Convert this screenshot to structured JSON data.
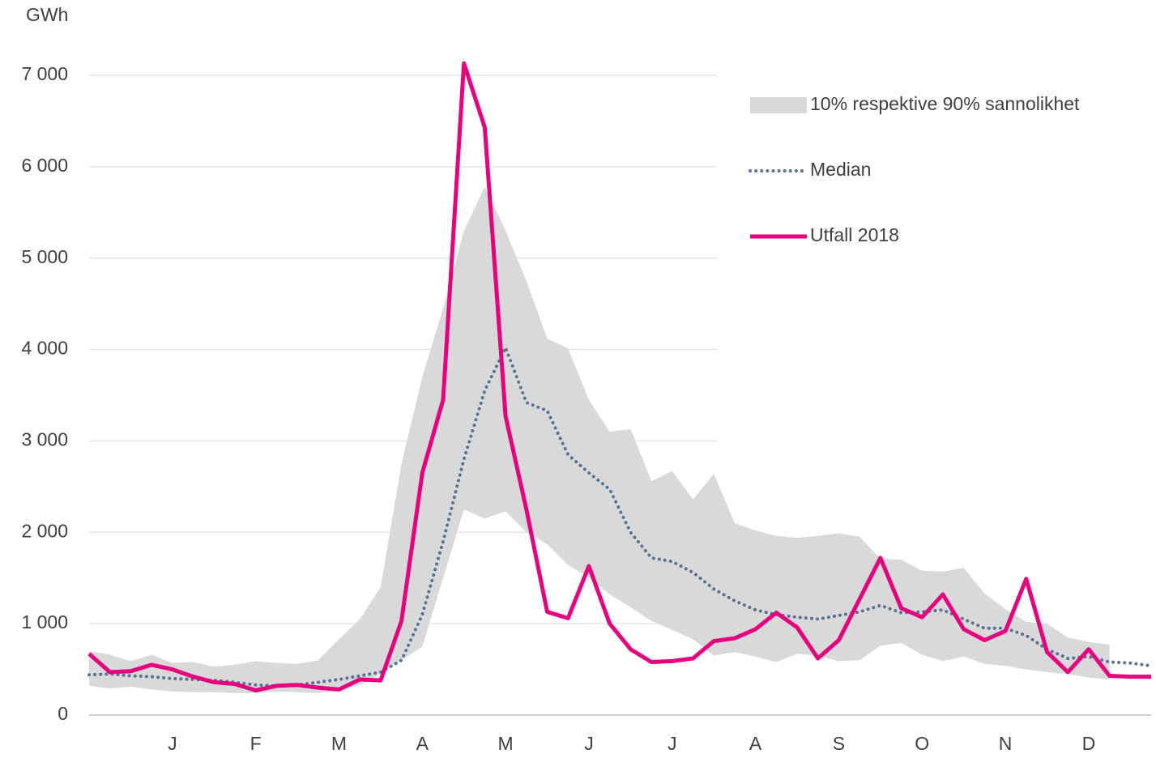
{
  "chart_data": {
    "type": "line",
    "y_label": "GWh",
    "x": [
      1,
      2,
      3,
      4,
      5,
      6,
      7,
      8,
      9,
      10,
      11,
      12,
      13,
      14,
      15,
      16,
      17,
      18,
      19,
      20,
      21,
      22,
      23,
      24,
      25,
      26,
      27,
      28,
      29,
      30,
      31,
      32,
      33,
      34,
      35,
      36,
      37,
      38,
      39,
      40,
      41,
      42,
      43,
      44,
      45,
      46,
      47,
      48,
      49,
      50,
      51,
      52
    ],
    "xlim": [
      1,
      52
    ],
    "xticks": [
      {
        "value": 5,
        "label": "J"
      },
      {
        "value": 9,
        "label": "F"
      },
      {
        "value": 13,
        "label": "M"
      },
      {
        "value": 17,
        "label": "A"
      },
      {
        "value": 21,
        "label": "M"
      },
      {
        "value": 25,
        "label": "J"
      },
      {
        "value": 29,
        "label": "J"
      },
      {
        "value": 33,
        "label": "A"
      },
      {
        "value": 37,
        "label": "S"
      },
      {
        "value": 41,
        "label": "O"
      },
      {
        "value": 45,
        "label": "N"
      },
      {
        "value": 49,
        "label": "D"
      }
    ],
    "ylim": [
      0,
      7000
    ],
    "yticks": [
      0,
      {
        "value": 1000,
        "label": "1 000"
      },
      {
        "value": 2000,
        "label": "2 000"
      },
      {
        "value": 3000,
        "label": "3 000"
      },
      {
        "value": 4000,
        "label": "4 000"
      },
      {
        "value": 5000,
        "label": "5 000"
      },
      {
        "value": 6000,
        "label": "6 000"
      },
      {
        "value": 7000,
        "label": "7 000"
      }
    ],
    "grid": true,
    "series": [
      {
        "name": "10% respektive 90% sannolikhet",
        "kind": "band",
        "color": "#d9d9d9",
        "upper": [
          700,
          660,
          590,
          660,
          570,
          580,
          530,
          550,
          590,
          570,
          560,
          600,
          830,
          1050,
          1400,
          2750,
          3700,
          4450,
          5300,
          5780,
          5300,
          4750,
          4120,
          4010,
          3450,
          3100,
          3130,
          2560,
          2670,
          2360,
          2640,
          2100,
          2020,
          1960,
          1940,
          1960,
          1990,
          1950,
          1710,
          1700,
          1580,
          1570,
          1610,
          1330,
          1160,
          1020,
          1000,
          850,
          800,
          770,
          null,
          null
        ],
        "lower": [
          320,
          290,
          310,
          280,
          260,
          250,
          250,
          240,
          240,
          260,
          250,
          240,
          270,
          330,
          450,
          600,
          750,
          1500,
          2250,
          2150,
          2230,
          2000,
          1870,
          1640,
          1510,
          1320,
          1180,
          1030,
          930,
          830,
          650,
          690,
          640,
          580,
          670,
          650,
          590,
          600,
          760,
          790,
          660,
          590,
          640,
          560,
          540,
          500,
          470,
          450,
          410,
          390,
          null,
          null
        ]
      },
      {
        "name": "Median",
        "kind": "dotted",
        "color": "#5b7393",
        "values": [
          440,
          450,
          430,
          420,
          400,
          390,
          380,
          360,
          330,
          320,
          330,
          360,
          390,
          430,
          470,
          600,
          1100,
          1900,
          2800,
          3550,
          4020,
          3420,
          3330,
          2850,
          2650,
          2470,
          2000,
          1720,
          1680,
          1560,
          1380,
          1250,
          1150,
          1100,
          1070,
          1050,
          1090,
          1130,
          1200,
          1120,
          1130,
          1150,
          1050,
          950,
          950,
          870,
          720,
          620,
          640,
          580,
          570,
          540
        ]
      },
      {
        "name": "Utfall 2018",
        "kind": "solid",
        "color": "#e6007e",
        "values": [
          670,
          470,
          480,
          550,
          500,
          420,
          360,
          340,
          270,
          320,
          330,
          300,
          280,
          390,
          380,
          1030,
          2650,
          3450,
          7130,
          6430,
          3270,
          2250,
          1130,
          1060,
          1630,
          1000,
          720,
          580,
          590,
          620,
          810,
          840,
          940,
          1120,
          960,
          620,
          820,
          1270,
          1720,
          1170,
          1070,
          1320,
          940,
          820,
          920,
          1490,
          690,
          470,
          720,
          430,
          420,
          420
        ]
      }
    ]
  }
}
